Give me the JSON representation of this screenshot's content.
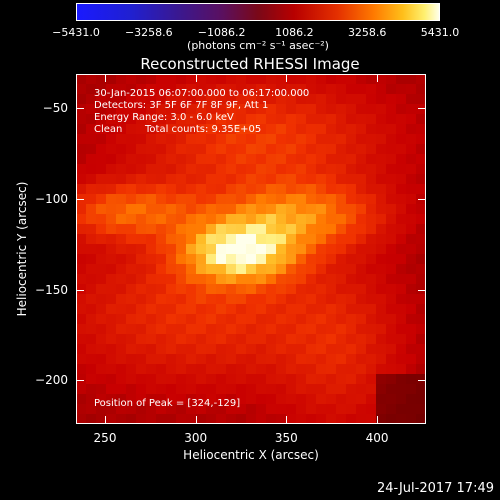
{
  "colorbar": {
    "ticks": [
      "−5431.0",
      "−3258.6",
      "−1086.2",
      "1086.2",
      "3258.6",
      "5431.0"
    ],
    "tick_values": [
      -5431.0,
      -3258.6,
      -1086.2,
      1086.2,
      3258.6,
      5431.0
    ],
    "unit": "(photons cm⁻² s⁻¹ asec⁻²)",
    "colors": [
      "#1a1aff",
      "#5a1060",
      "#b80000",
      "#ff7a00",
      "#fff070",
      "#ffffe8"
    ]
  },
  "chart_data": {
    "type": "heatmap",
    "title": "Reconstructed RHESSI Image",
    "xlabel": "Heliocentric X (arcsec)",
    "ylabel": "Heliocentric Y (arcsec)",
    "xlim": [
      234,
      427
    ],
    "ylim": [
      -224,
      -31
    ],
    "x_ticks": [
      250,
      300,
      350,
      400
    ],
    "y_ticks": [
      -50,
      -100,
      -150,
      -200
    ],
    "zlim": [
      -5431.0,
      5431.0
    ],
    "peak": {
      "x": 324,
      "y": -129
    },
    "annotations": {
      "time_range": "30-Jan-2015 06:07:00.000 to 06:17:00.000",
      "detectors": "Detectors: 3F 5F 6F 7F 8F 9F, Att 1",
      "energy": "Energy Range: 3.0 - 6.0 keV",
      "method_label": "Clean",
      "total_counts": "Total counts: 9.35E+05",
      "peak_label": "Position of Peak = [324,-129]"
    }
  },
  "timestamp": "24-Jul-2017 17:49"
}
